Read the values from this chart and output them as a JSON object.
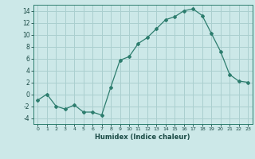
{
  "x": [
    0,
    1,
    2,
    3,
    4,
    5,
    6,
    7,
    8,
    9,
    10,
    11,
    12,
    13,
    14,
    15,
    16,
    17,
    18,
    19,
    20,
    21,
    22,
    23
  ],
  "y": [
    -1,
    0,
    -2,
    -2.5,
    -1.8,
    -3,
    -3,
    -3.5,
    1.2,
    5.7,
    6.3,
    8.5,
    9.5,
    11.0,
    12.5,
    13.0,
    14.0,
    14.3,
    13.2,
    10.2,
    7.2,
    3.3,
    2.2,
    2.0
  ],
  "line_color": "#2d7d6e",
  "marker": "D",
  "marker_size": 2.0,
  "bg_color": "#cce8e8",
  "grid_color": "#aacfcf",
  "xlabel": "Humidex (Indice chaleur)",
  "xlim": [
    -0.5,
    23.5
  ],
  "ylim": [
    -5,
    15
  ],
  "yticks": [
    -4,
    -2,
    0,
    2,
    4,
    6,
    8,
    10,
    12,
    14
  ],
  "xticks": [
    0,
    1,
    2,
    3,
    4,
    5,
    6,
    7,
    8,
    9,
    10,
    11,
    12,
    13,
    14,
    15,
    16,
    17,
    18,
    19,
    20,
    21,
    22,
    23
  ]
}
